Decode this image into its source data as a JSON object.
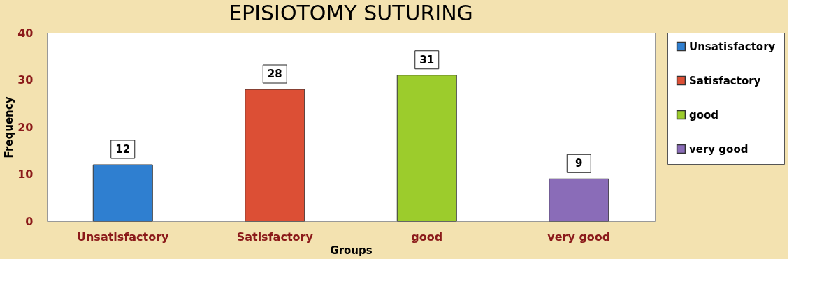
{
  "chart_data": {
    "type": "bar",
    "title": "EPISIOTOMY SUTURING",
    "xlabel": "Groups",
    "ylabel": "Frequency",
    "categories": [
      "Unsatisfactory",
      "Satisfactory",
      "good",
      "very good"
    ],
    "series": [
      {
        "name": "Unsatisfactory",
        "color": "#2f7fd0",
        "values": [
          12,
          null,
          null,
          null
        ]
      },
      {
        "name": "Satisfactory",
        "color": "#dc4f35",
        "values": [
          null,
          28,
          null,
          null
        ]
      },
      {
        "name": "good",
        "color": "#9ccc2c",
        "values": [
          null,
          null,
          31,
          null
        ]
      },
      {
        "name": "very good",
        "color": "#8a6cb8",
        "values": [
          null,
          null,
          null,
          9
        ]
      }
    ],
    "ylim": [
      0,
      40
    ],
    "yticks": [
      0,
      10,
      20,
      30,
      40
    ],
    "grid": false,
    "legend": "right",
    "data_labels": true
  }
}
